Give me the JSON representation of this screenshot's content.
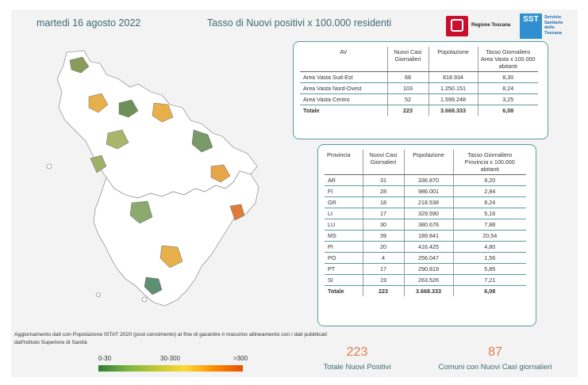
{
  "header": {
    "date": "martedi 16 agosto 2022",
    "title": "Tasso di Nuovi positivi x 100.000 residenti"
  },
  "logos": {
    "regione": "Regione Toscana",
    "sst_abbr": "SST",
    "sst_name": "Servizio Sanitario della Toscana"
  },
  "av_table": {
    "headers": [
      "AV",
      "Nuovi Casi Giornalieri",
      "Popolazione",
      "Tasso Giornaliero Area Vasta x 100.000 abitanti"
    ],
    "rows": [
      [
        "Area Vasta Sud-Est",
        "68",
        "818.934",
        "8,30"
      ],
      [
        "Area Vasta Nord-Ovest",
        "103",
        "1.250.151",
        "8,24"
      ],
      [
        "Area Vasta Centro",
        "52",
        "1.599.248",
        "3,25"
      ]
    ],
    "total": [
      "Totale",
      "223",
      "3.668.333",
      "6,08"
    ]
  },
  "prov_table": {
    "headers": [
      "Provincia",
      "Nuovi Casi Giornalieri",
      "Popolazione",
      "Tasso Giornaliero Provincia x 100.000 abitanti"
    ],
    "rows": [
      [
        "AR",
        "31",
        "336.870",
        "9,20"
      ],
      [
        "FI",
        "28",
        "986.001",
        "2,84"
      ],
      [
        "GR",
        "18",
        "218.538",
        "8,24"
      ],
      [
        "LI",
        "17",
        "329.590",
        "5,16"
      ],
      [
        "LU",
        "30",
        "380.676",
        "7,88"
      ],
      [
        "MS",
        "39",
        "189.841",
        "20,54"
      ],
      [
        "PI",
        "20",
        "416.425",
        "4,80"
      ],
      [
        "PO",
        "4",
        "256.047",
        "1,56"
      ],
      [
        "PT",
        "17",
        "290.819",
        "5,85"
      ],
      [
        "SI",
        "19",
        "263.526",
        "7,21"
      ]
    ],
    "total": [
      "Totale",
      "223",
      "3.668.333",
      "6,08"
    ]
  },
  "note": "Aggiornamento dati con Popolazione ISTAT 2020 (post censimento) al fine di garantire il massimo allineamento con i dati pubblicati dall'Istituto Superiore di Sanità",
  "legend": {
    "low": "0-30",
    "mid": "30-300",
    "high": ">300"
  },
  "stats": {
    "total_positives": "223",
    "total_positives_label": "Totale Nuovi Positivi",
    "municipalities": "87",
    "municipalities_label": "Comuni con Nuovi Casi giornalieri"
  },
  "colors": {
    "accent": "#3d6b73",
    "stat_number": "#e07b4f",
    "border": "#5a9b9e"
  }
}
